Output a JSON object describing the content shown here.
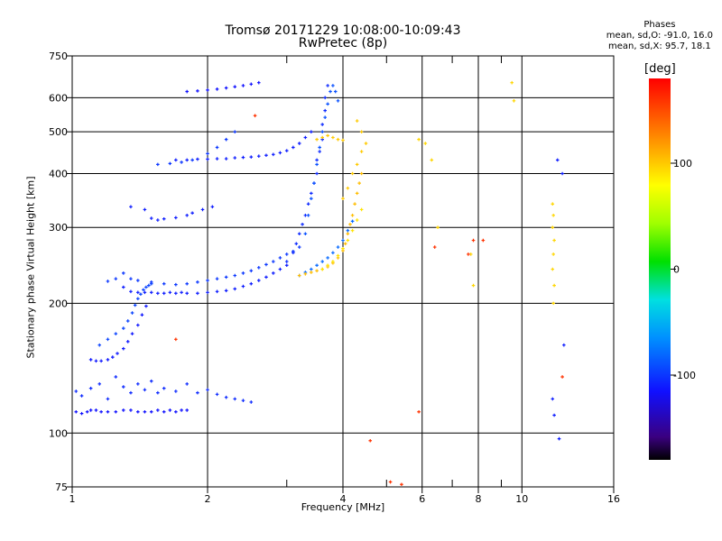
{
  "chart_data": {
    "type": "scatter",
    "title": "Tromsø 20171229 10:08:00-10:09:43",
    "subtitle": "RwPretec (8p)",
    "xlabel": "Frequency [MHz]",
    "ylabel": "Stationary phase Virtual Height [km]",
    "x_scale": "log",
    "y_scale": "log",
    "xlim": [
      1,
      16
    ],
    "ylim": [
      75,
      750
    ],
    "x_ticks": [
      1,
      2,
      4,
      6,
      8,
      10,
      16
    ],
    "x_tick_labels": [
      "1",
      "2",
      "4",
      "6",
      "8",
      "10",
      "16"
    ],
    "x_minor_ticks": [
      3,
      5,
      7,
      9
    ],
    "y_ticks": [
      75,
      100,
      200,
      300,
      400,
      500,
      600,
      750
    ],
    "y_tick_labels": [
      "75",
      "100",
      "200",
      "300",
      "400",
      "500",
      "600",
      "750"
    ],
    "grid": true,
    "colorbar": {
      "label": "[deg]",
      "range": [
        -180,
        180
      ],
      "ticks": [
        100,
        0,
        -100
      ],
      "tick_labels": [
        "100",
        "0",
        "-100"
      ]
    },
    "stats": {
      "heading": "Phases",
      "line1": "mean, sd,O: -91.0, 16.0",
      "line2": "mean, sd,X:  95.7, 18.1"
    },
    "series": [
      {
        "x": [
          1.02,
          1.05,
          1.08,
          1.1,
          1.13,
          1.16,
          1.2,
          1.25,
          1.3,
          1.35,
          1.4,
          1.45,
          1.5,
          1.55,
          1.6,
          1.65,
          1.7,
          1.75,
          1.8
        ],
        "y": [
          112,
          111,
          112,
          113,
          113,
          112,
          112,
          112,
          113,
          113,
          112,
          112,
          112,
          113,
          112,
          113,
          112,
          113,
          113
        ],
        "phase": -115
      },
      {
        "x": [
          1.02,
          1.05,
          1.1,
          1.15,
          1.2,
          1.25,
          1.3,
          1.35,
          1.4,
          1.45,
          1.5,
          1.55,
          1.6,
          1.7,
          1.8,
          1.9,
          2.0,
          2.1,
          2.2,
          2.3,
          2.4,
          2.5
        ],
        "y": [
          125,
          122,
          127,
          130,
          120,
          135,
          128,
          124,
          130,
          126,
          132,
          124,
          127,
          125,
          130,
          124,
          126,
          123,
          121,
          120,
          119,
          118
        ],
        "phase": -105
      },
      {
        "x": [
          1.1,
          1.13,
          1.16,
          1.2,
          1.23,
          1.26,
          1.3,
          1.33,
          1.36,
          1.4,
          1.43,
          1.46
        ],
        "y": [
          148,
          147,
          147,
          148,
          150,
          153,
          157,
          163,
          170,
          178,
          188,
          197
        ],
        "phase": -112
      },
      {
        "x": [
          1.15,
          1.2,
          1.25,
          1.3,
          1.33,
          1.36,
          1.38,
          1.4,
          1.42,
          1.44,
          1.46,
          1.48,
          1.5
        ],
        "y": [
          160,
          165,
          170,
          175,
          182,
          190,
          198,
          205,
          210,
          215,
          218,
          220,
          222
        ],
        "phase": -95
      },
      {
        "x": [
          1.3,
          1.35,
          1.4,
          1.45,
          1.5,
          1.55,
          1.6,
          1.65,
          1.7,
          1.75,
          1.8,
          1.9,
          2.0,
          2.1,
          2.2,
          2.3,
          2.4,
          2.5,
          2.6,
          2.7,
          2.8,
          2.9,
          3.0
        ],
        "y": [
          218,
          213,
          212,
          212,
          212,
          211,
          211,
          212,
          211,
          212,
          211,
          211,
          212,
          213,
          214,
          216,
          219,
          222,
          226,
          230,
          235,
          240,
          245
        ],
        "phase": -110
      },
      {
        "x": [
          1.2,
          1.25,
          1.3,
          1.35,
          1.4,
          1.5,
          1.6,
          1.7,
          1.8,
          1.9,
          2.0,
          2.1,
          2.2,
          2.3,
          2.4,
          2.5,
          2.6,
          2.7,
          2.8,
          2.9,
          3.0,
          3.1,
          3.2
        ],
        "y": [
          225,
          228,
          235,
          228,
          226,
          224,
          222,
          221,
          222,
          224,
          226,
          228,
          230,
          232,
          235,
          238,
          242,
          246,
          250,
          255,
          260,
          264,
          270
        ],
        "phase": -100
      },
      {
        "x": [
          3.0,
          3.1,
          3.15,
          3.2,
          3.25,
          3.3,
          3.35,
          3.4,
          3.45,
          3.5,
          3.5,
          3.55,
          3.6,
          3.6,
          3.65,
          3.65,
          3.7
        ],
        "y": [
          250,
          262,
          275,
          290,
          305,
          320,
          340,
          360,
          380,
          400,
          430,
          450,
          480,
          520,
          560,
          600,
          640
        ],
        "phase": -105
      },
      {
        "x": [
          3.3,
          3.35,
          3.4,
          3.45,
          3.5,
          3.55,
          3.6,
          3.65,
          3.7,
          3.75,
          3.8,
          3.85,
          3.9
        ],
        "y": [
          290,
          320,
          350,
          380,
          420,
          460,
          500,
          540,
          580,
          620,
          640,
          620,
          590
        ],
        "phase": -90
      },
      {
        "x": [
          3.2,
          3.3,
          3.4,
          3.5,
          3.6,
          3.7,
          3.8,
          3.9,
          4.0,
          4.1,
          4.2
        ],
        "y": [
          232,
          236,
          240,
          245,
          250,
          255,
          262,
          270,
          280,
          295,
          310
        ],
        "phase": -80
      },
      {
        "x": [
          3.2,
          3.3,
          3.4,
          3.5,
          3.6,
          3.7,
          3.8,
          3.9,
          4.0,
          4.05,
          4.1,
          4.15,
          4.2,
          4.25,
          4.3,
          4.35,
          4.4
        ],
        "y": [
          232,
          234,
          236,
          238,
          240,
          243,
          248,
          255,
          265,
          275,
          290,
          305,
          320,
          340,
          360,
          380,
          400
        ],
        "phase": 105
      },
      {
        "x": [
          3.6,
          3.7,
          3.8,
          3.9,
          4.0,
          4.1,
          4.2,
          4.3,
          4.4
        ],
        "y": [
          240,
          245,
          250,
          258,
          268,
          280,
          295,
          312,
          330
        ],
        "phase": 90
      },
      {
        "x": [
          4.0,
          4.1,
          4.2,
          4.3,
          4.4,
          4.5,
          4.4,
          4.3
        ],
        "y": [
          350,
          370,
          400,
          420,
          450,
          470,
          500,
          530
        ],
        "phase": 100
      },
      {
        "x": [
          1.7,
          1.8,
          1.9,
          2.0,
          2.1,
          2.2,
          2.3,
          2.4,
          2.5,
          2.6,
          2.7,
          2.8,
          2.9,
          3.0,
          3.1,
          3.2,
          3.3,
          3.4
        ],
        "y": [
          430,
          430,
          432,
          432,
          433,
          433,
          435,
          436,
          437,
          439,
          441,
          443,
          447,
          452,
          460,
          470,
          485,
          500
        ],
        "phase": -110
      },
      {
        "x": [
          3.5,
          3.6,
          3.7,
          3.8,
          3.9,
          4.0
        ],
        "y": [
          480,
          485,
          490,
          485,
          480,
          478
        ],
        "phase": 100
      },
      {
        "x": [
          1.8,
          1.9,
          2.0,
          2.1,
          2.2,
          2.3,
          2.4,
          2.5,
          2.6
        ],
        "y": [
          620,
          622,
          625,
          628,
          632,
          636,
          640,
          645,
          650
        ],
        "phase": -115
      },
      {
        "x": [
          1.35,
          1.45,
          1.5,
          1.55,
          1.6,
          1.7,
          1.8,
          1.85,
          1.95,
          2.05
        ],
        "y": [
          335,
          330,
          315,
          312,
          314,
          316,
          320,
          324,
          330,
          335
        ],
        "phase": -110
      },
      {
        "x": [
          1.55,
          1.65,
          1.75,
          1.85,
          2.0,
          2.1,
          2.2,
          2.3
        ],
        "y": [
          420,
          422,
          425,
          430,
          445,
          460,
          480,
          500
        ],
        "phase": -100
      },
      {
        "x": [
          5.9,
          6.1,
          6.3,
          6.5,
          7.7,
          7.8,
          9.5,
          9.6
        ],
        "y": [
          480,
          470,
          430,
          300,
          260,
          220,
          650,
          590
        ],
        "phase": 95
      },
      {
        "x": [
          11.7,
          11.75,
          11.7,
          11.8,
          11.75,
          11.7,
          11.8,
          11.75
        ],
        "y": [
          340,
          320,
          300,
          280,
          260,
          240,
          220,
          200
        ],
        "phase": 95
      },
      {
        "x": [
          12.0,
          12.3,
          12.4,
          11.7,
          11.8,
          12.1
        ],
        "y": [
          430,
          400,
          160,
          120,
          110,
          97
        ],
        "phase": -110
      },
      {
        "x": [
          4.6,
          5.1,
          5.4,
          5.9,
          6.4,
          7.6,
          7.8,
          8.2,
          1.7,
          2.55,
          12.3
        ],
        "y": [
          96,
          77,
          76,
          112,
          270,
          260,
          280,
          280,
          165,
          545,
          135
        ],
        "phase": 160
      }
    ]
  }
}
